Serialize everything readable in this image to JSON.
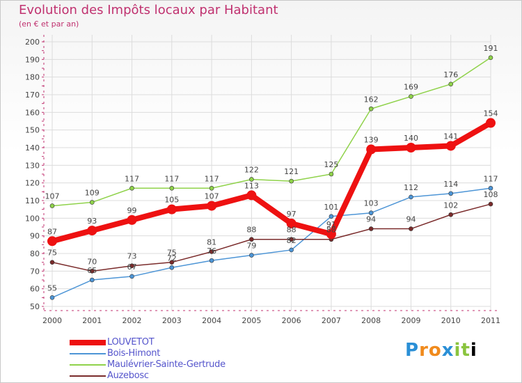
{
  "header": {
    "title": "Evolution des Impôts locaux par Habitant",
    "subtitle": "(en € et par an)"
  },
  "logo": {
    "letters": [
      "P",
      "r",
      "o",
      "x",
      "i",
      "t",
      "i"
    ]
  },
  "colors": {
    "title": "#c0316f",
    "axis": "#c0316f",
    "grid": "#dcdcdc",
    "label": "#444444",
    "legend_text": "#5555cc"
  },
  "chart_data": {
    "type": "line",
    "title": "Evolution des Impôts locaux par Habitant",
    "subtitle": "(en € et par an)",
    "xlabel": "",
    "ylabel": "",
    "ylim": [
      50,
      200
    ],
    "yticks": [
      50,
      60,
      70,
      80,
      90,
      100,
      110,
      120,
      130,
      140,
      150,
      160,
      170,
      180,
      190,
      200
    ],
    "grid": true,
    "categories": [
      "2000",
      "2001",
      "2002",
      "2003",
      "2004",
      "2005",
      "2006",
      "2007",
      "2008",
      "2009",
      "2010",
      "2011"
    ],
    "series": [
      {
        "name": "LOUVETOT",
        "color": "#ee1111",
        "emphasis": "thick",
        "values": [
          87,
          93,
          99,
          105,
          107,
          113,
          97,
          91,
          139,
          140,
          141,
          154
        ],
        "labels": [
          "87",
          "93",
          "99",
          "105",
          "107",
          "113",
          "97",
          "91",
          "139",
          "140",
          "141",
          "154"
        ]
      },
      {
        "name": "Bois-Himont",
        "color": "#4d95d6",
        "emphasis": "thin",
        "values": [
          55,
          65,
          67,
          72,
          76,
          79,
          82,
          101,
          103,
          112,
          114,
          117
        ],
        "labels": [
          "55",
          "65",
          "67",
          "72",
          "76",
          "79",
          "82",
          "101",
          "103",
          "112",
          "114",
          "117"
        ]
      },
      {
        "name": "Maulévrier-Sainte-Gertrude",
        "color": "#8fd24a",
        "emphasis": "thin",
        "values": [
          107,
          109,
          117,
          117,
          117,
          122,
          121,
          125,
          162,
          169,
          176,
          191
        ],
        "labels": [
          "107",
          "109",
          "117",
          "117",
          "117",
          "122",
          "121",
          "125",
          "162",
          "169",
          "176",
          "191"
        ]
      },
      {
        "name": "Auzebosc",
        "color": "#7a2b2b",
        "emphasis": "thin",
        "values": [
          75,
          70,
          73,
          75,
          81,
          88,
          88,
          88,
          94,
          94,
          102,
          108
        ],
        "labels": [
          "75",
          "70",
          "73",
          "75",
          "81",
          "88",
          "88",
          "88",
          "94",
          "94",
          "102",
          "108"
        ]
      }
    ],
    "legend_position": "bottom-left"
  }
}
